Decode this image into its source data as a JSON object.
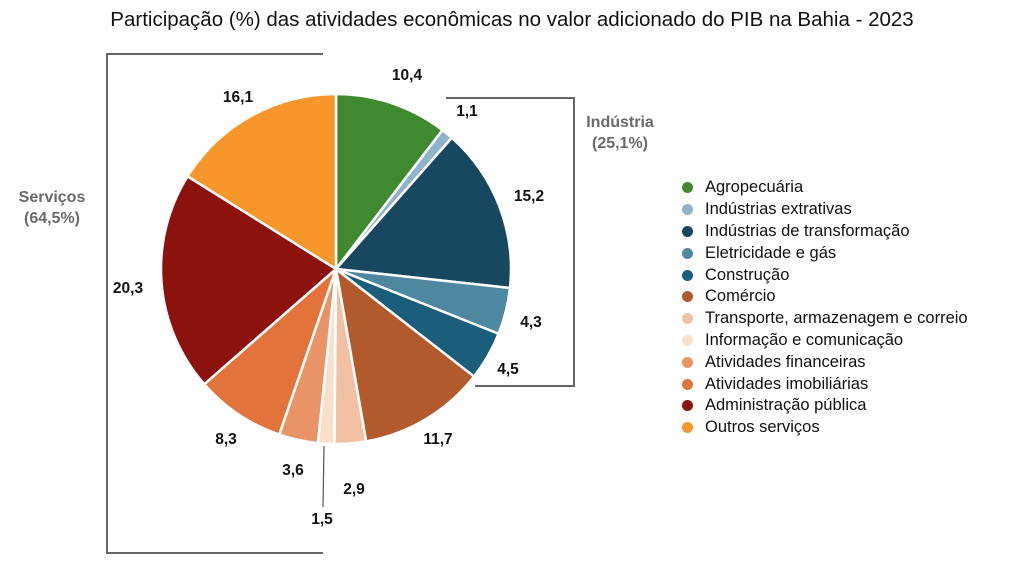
{
  "chart_data": {
    "type": "pie",
    "title": "Participação (%) das atividades econômicas no valor adicionado do PIB na Bahia - 2023",
    "slices": [
      {
        "label": "Agropecuária",
        "value": 10.4,
        "display": "10,4",
        "color": "#3f8a2e"
      },
      {
        "label": "Indústrias extrativas",
        "value": 1.1,
        "display": "1,1",
        "color": "#8fb3c9"
      },
      {
        "label": "Indústrias de transformação",
        "value": 15.2,
        "display": "15,2",
        "color": "#17485f"
      },
      {
        "label": "Eletricidade e gás",
        "value": 4.3,
        "display": "4,3",
        "color": "#4e88a0"
      },
      {
        "label": "Construção",
        "value": 4.5,
        "display": "4,5",
        "color": "#1b5e7c"
      },
      {
        "label": "Comércio",
        "value": 11.7,
        "display": "11,7",
        "color": "#b35a2d"
      },
      {
        "label": "Transporte, armazenagem e correio",
        "value": 2.9,
        "display": "2,9",
        "color": "#f2c0a3"
      },
      {
        "label": "Informação e comunicação",
        "value": 1.5,
        "display": "1,5",
        "color": "#fadfcb"
      },
      {
        "label": "Atividades financeiras",
        "value": 3.6,
        "display": "3,6",
        "color": "#e99466"
      },
      {
        "label": "Atividades imobiliárias",
        "value": 8.3,
        "display": "8,3",
        "color": "#e2733a"
      },
      {
        "label": "Administração pública",
        "value": 20.3,
        "display": "20,3",
        "color": "#8c130d"
      },
      {
        "label": "Outros serviços",
        "value": 16.1,
        "display": "16,1",
        "color": "#f7962a"
      }
    ],
    "groups": [
      {
        "name": "Indústria",
        "share": "(25,1%)"
      },
      {
        "name": "Serviços",
        "share": "(64,5%)"
      }
    ],
    "legend_position": "right"
  }
}
